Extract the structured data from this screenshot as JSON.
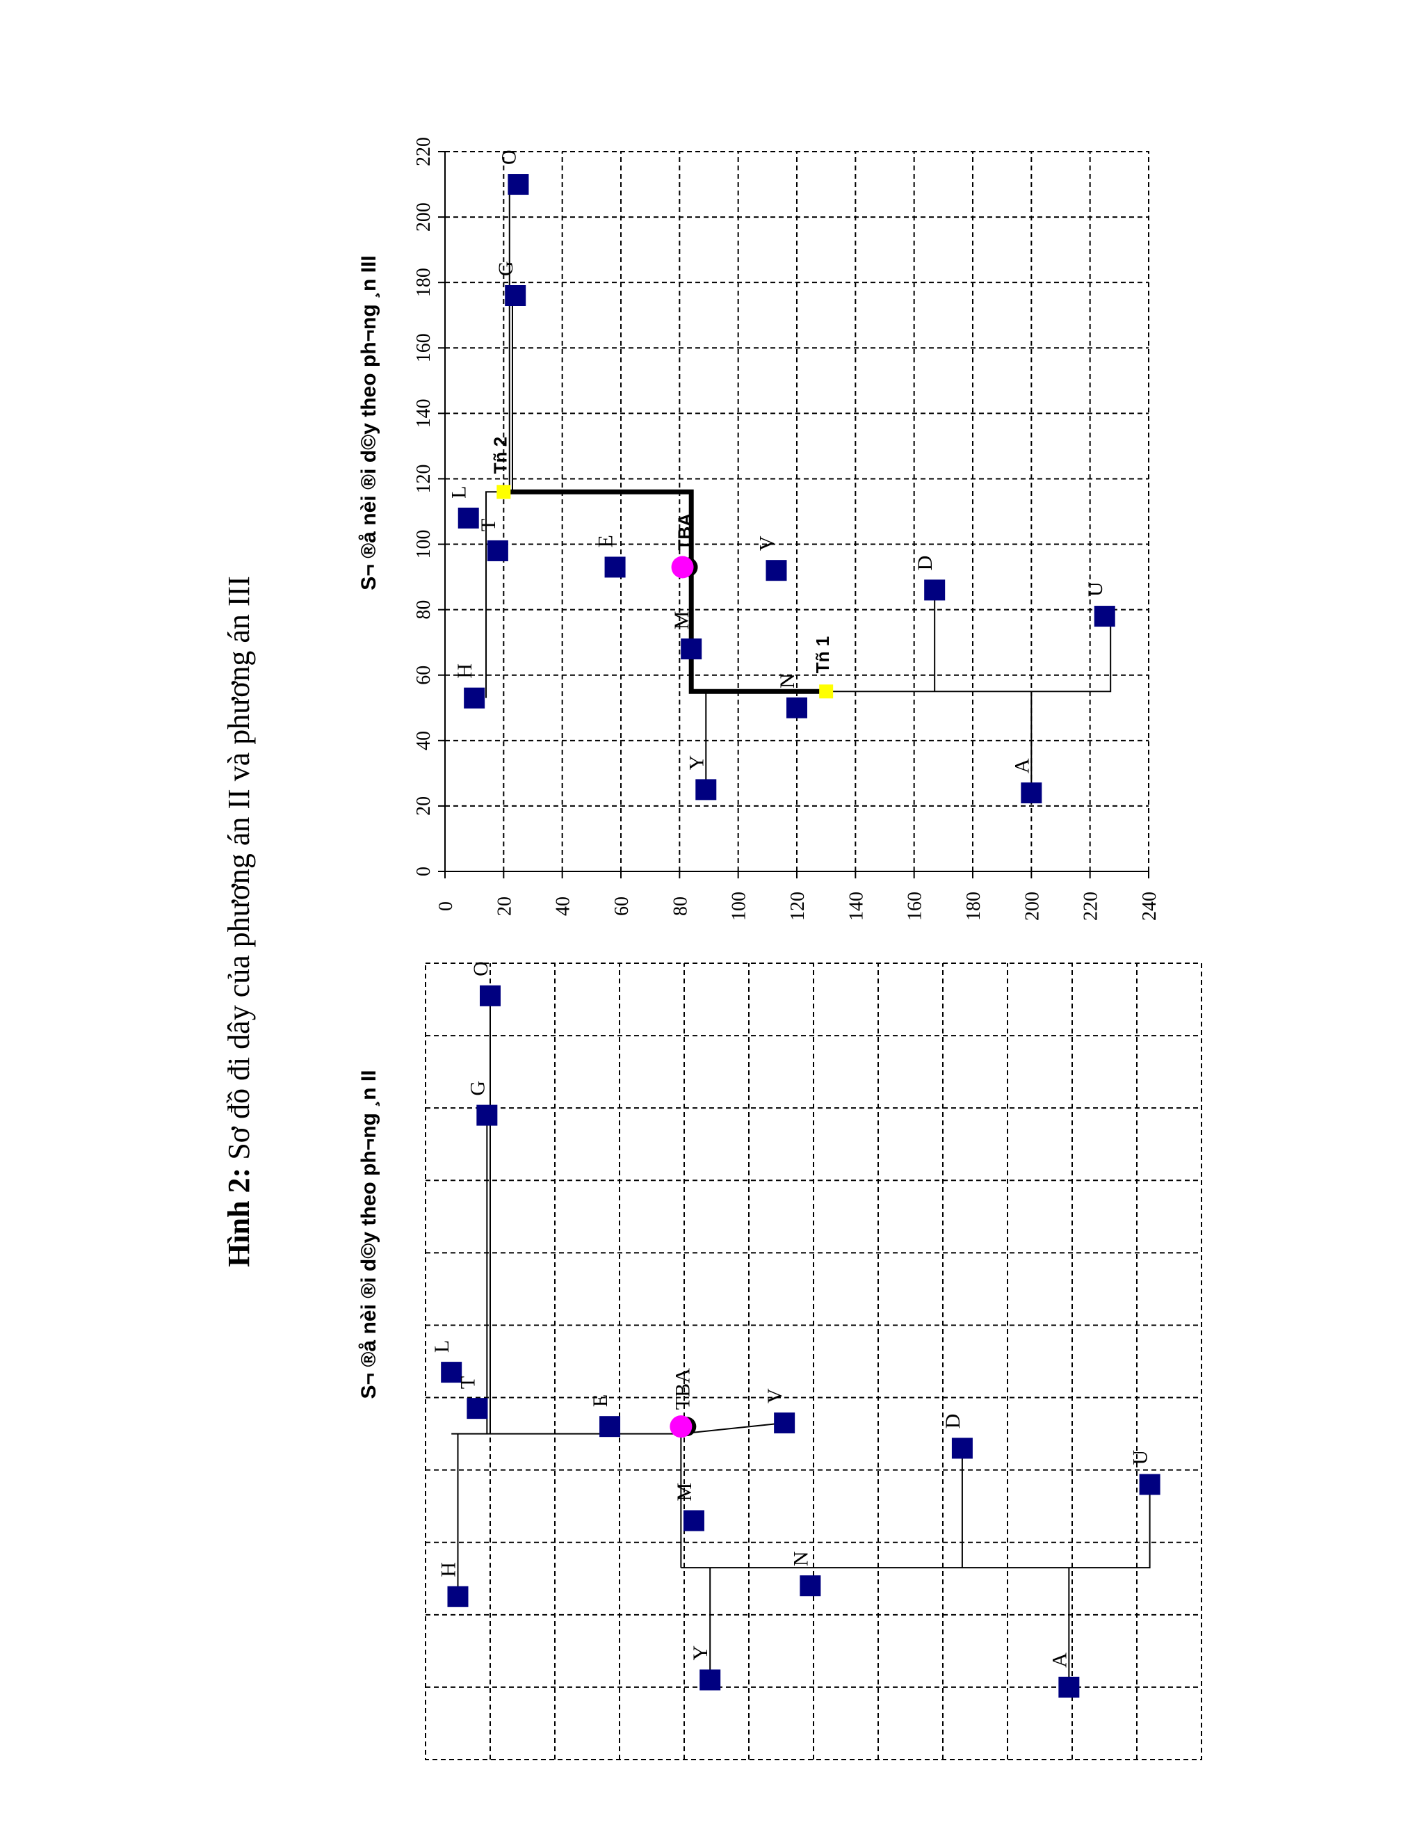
{
  "figure": {
    "prefix": "Hình 2:",
    "title": " Sơ đồ đi dây của phương án II và phương án III"
  },
  "chart_data": [
    {
      "type": "scatter",
      "title": "S¬ ®å nèi ®i d©y theo ph­¬ng ¸n II",
      "grid": true,
      "axes_visible": false,
      "xlim": [
        0,
        220
      ],
      "ylim": [
        0,
        240
      ],
      "points": [
        {
          "name": "O",
          "x": 211,
          "y": 20
        },
        {
          "name": "G",
          "x": 178,
          "y": 19
        },
        {
          "name": "L",
          "x": 107,
          "y": 8
        },
        {
          "name": "T",
          "x": 97,
          "y": 16
        },
        {
          "name": "H",
          "x": 45,
          "y": 10
        },
        {
          "name": "E",
          "x": 92,
          "y": 57
        },
        {
          "name": "TBA",
          "x": 92,
          "y": 79
        },
        {
          "name": "M",
          "x": 66,
          "y": 83
        },
        {
          "name": "Y",
          "x": 22,
          "y": 88
        },
        {
          "name": "V",
          "x": 93,
          "y": 111
        },
        {
          "name": "N",
          "x": 48,
          "y": 119
        },
        {
          "name": "D",
          "x": 86,
          "y": 166
        },
        {
          "name": "A",
          "x": 20,
          "y": 199
        },
        {
          "name": "U",
          "x": 76,
          "y": 224
        }
      ]
    },
    {
      "type": "scatter",
      "title": "S¬ ®å nèi ®i d©y theo ph­¬ng ¸n III",
      "grid": true,
      "xlabel": "",
      "ylabel": "",
      "xlim": [
        0,
        220
      ],
      "ylim": [
        0,
        240
      ],
      "xticks": [
        0,
        20,
        40,
        60,
        80,
        100,
        120,
        140,
        160,
        180,
        200,
        220
      ],
      "yticks": [
        0,
        20,
        40,
        60,
        80,
        100,
        120,
        140,
        160,
        180,
        200,
        220,
        240
      ],
      "points": [
        {
          "name": "O",
          "x": 210,
          "y": 25
        },
        {
          "name": "G",
          "x": 176,
          "y": 24
        },
        {
          "name": "L",
          "x": 108,
          "y": 8
        },
        {
          "name": "T",
          "x": 98,
          "y": 18
        },
        {
          "name": "H",
          "x": 53,
          "y": 10
        },
        {
          "name": "E",
          "x": 93,
          "y": 58
        },
        {
          "name": "TBA",
          "x": 93,
          "y": 81
        },
        {
          "name": "M",
          "x": 68,
          "y": 84
        },
        {
          "name": "Y",
          "x": 25,
          "y": 89
        },
        {
          "name": "V",
          "x": 92,
          "y": 113
        },
        {
          "name": "N",
          "x": 50,
          "y": 120
        },
        {
          "name": "D",
          "x": 86,
          "y": 167
        },
        {
          "name": "A",
          "x": 24,
          "y": 200
        },
        {
          "name": "U",
          "x": 78,
          "y": 225
        }
      ],
      "junctions": [
        {
          "name": "Tñ 1",
          "x": 55,
          "y": 130
        },
        {
          "name": "Tñ 2",
          "x": 116,
          "y": 20
        }
      ]
    }
  ],
  "colors": {
    "point": "#000080",
    "tba": "#ff00ff",
    "junction": "#ffff00",
    "line": "#000000"
  }
}
